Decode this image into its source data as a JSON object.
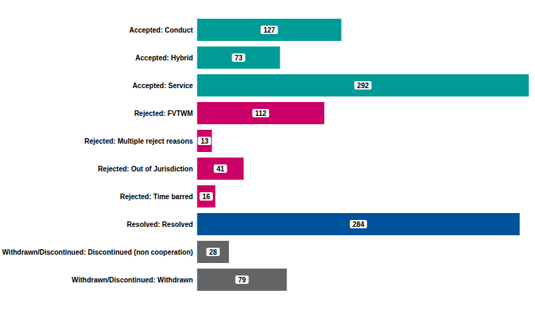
{
  "chart_data": {
    "type": "bar",
    "orientation": "horizontal",
    "categories": [
      "Accepted: Conduct",
      "Accepted: Hybrid",
      "Accepted: Service",
      "Rejected: FVTWM",
      "Rejected: Multiple reject reasons",
      "Rejected: Out of Jurisdiction",
      "Rejected: Time barred",
      "Resolved: Resolved",
      "Withdrawn/Discontinued: Discontinued (non cooperation)",
      "Withdrawn/Discontinued: Withdrawn"
    ],
    "values": [
      127,
      73,
      292,
      112,
      13,
      41,
      16,
      284,
      28,
      79
    ],
    "colors": [
      "#009b96",
      "#009b96",
      "#009b96",
      "#cc0066",
      "#cc0066",
      "#cc0066",
      "#cc0066",
      "#00529b",
      "#636466",
      "#636466"
    ],
    "data_labels": true,
    "tick_labels": "y",
    "grid": false
  }
}
